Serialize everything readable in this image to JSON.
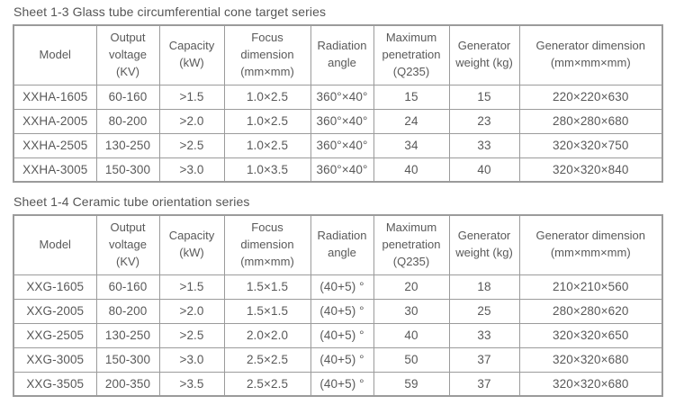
{
  "page": {
    "background_color": "#ffffff",
    "text_color": "#595959",
    "border_color": "#9b9b9b"
  },
  "tables": [
    {
      "title": "Sheet 1-3 Glass tube circumferential cone target series",
      "columns": [
        "Model",
        "Output voltage (KV)",
        "Capacity (kW)",
        "Focus dimension (mm×mm)",
        "Radiation angle",
        "Maximum penetration (Q235)",
        "Generator weight (kg)",
        "Generator dimension (mm×mm×mm)"
      ],
      "rows": [
        [
          "XXHA-1605",
          "60-160",
          ">1.5",
          "1.0×2.5",
          "360°×40°",
          "15",
          "15",
          "220×220×630"
        ],
        [
          "XXHA-2005",
          "80-200",
          ">2.0",
          "1.0×2.5",
          "360°×40°",
          "24",
          "23",
          "280×280×680"
        ],
        [
          "XXHA-2505",
          "130-250",
          ">2.5",
          "1.0×2.5",
          "360°×40°",
          "34",
          "33",
          "320×320×750"
        ],
        [
          "XXHA-3005",
          "150-300",
          ">3.0",
          "1.0×3.5",
          "360°×40°",
          "40",
          "40",
          "320×320×840"
        ]
      ]
    },
    {
      "title": "Sheet 1-4 Ceramic tube orientation series",
      "columns": [
        "Model",
        "Output voltage (KV)",
        "Capacity (kW)",
        "Focus dimension (mm×mm)",
        "Radiation angle",
        "Maximum penetration (Q235)",
        "Generator weight (kg)",
        "Generator dimension (mm×mm×mm)"
      ],
      "rows": [
        [
          "XXG-1605",
          "60-160",
          ">1.5",
          "1.5×1.5",
          "(40+5) °",
          "20",
          "18",
          "210×210×560"
        ],
        [
          "XXG-2005",
          "80-200",
          ">2.0",
          "1.5×1.5",
          "(40+5) °",
          "30",
          "25",
          "280×280×620"
        ],
        [
          "XXG-2505",
          "130-250",
          ">2.5",
          "2.0×2.0",
          "(40+5) °",
          "40",
          "33",
          "320×320×650"
        ],
        [
          "XXG-3005",
          "150-300",
          ">3.0",
          "2.5×2.5",
          "(40+5) °",
          "50",
          "37",
          "320×320×680"
        ],
        [
          "XXG-3505",
          "200-350",
          ">3.5",
          "2.5×2.5",
          "(40+5) °",
          "59",
          "37",
          "320×320×680"
        ]
      ]
    }
  ]
}
